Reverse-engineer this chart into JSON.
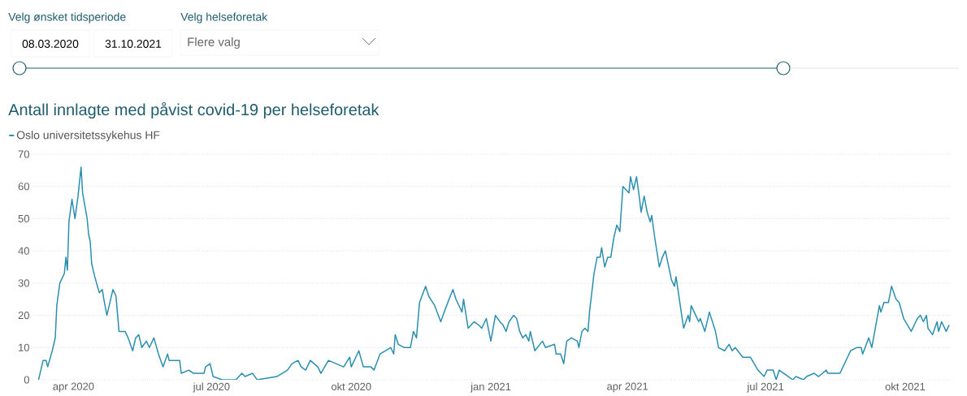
{
  "chart_data": {
    "type": "line",
    "title": "Antall innlagte med påvist covid-19 per helseforetak",
    "annotations": [
      "Velg ønsket tidsperiode",
      "08.03.2020",
      "31.10.2021",
      "Velg helseforetak",
      "Flere valg"
    ],
    "x": [
      "2020-03-09",
      "2020-03-12",
      "2020-03-14",
      "2020-03-15",
      "2020-03-18",
      "2020-03-20",
      "2020-03-21",
      "2020-03-23",
      "2020-03-26",
      "2020-03-27",
      "2020-03-28",
      "2020-03-29",
      "2020-03-31",
      "2020-04-02",
      "2020-04-04",
      "2020-04-06",
      "2020-04-07",
      "2020-04-10",
      "2020-04-11",
      "2020-04-12",
      "2020-04-13",
      "2020-04-15",
      "2020-04-18",
      "2020-04-20",
      "2020-04-21",
      "2020-04-23",
      "2020-04-27",
      "2020-04-29",
      "2020-05-01",
      "2020-05-05",
      "2020-05-07",
      "2020-05-10",
      "2020-05-12",
      "2020-05-14",
      "2020-05-16",
      "2020-05-19",
      "2020-05-21",
      "2020-05-24",
      "2020-05-27",
      "2020-05-30",
      "2020-06-02",
      "2020-06-03",
      "2020-06-10",
      "2020-06-11",
      "2020-06-16",
      "2020-06-19",
      "2020-06-26",
      "2020-06-27",
      "2020-06-30",
      "2020-07-02",
      "2020-07-08",
      "2020-07-17",
      "2020-07-21",
      "2020-07-23",
      "2020-07-28",
      "2020-07-31",
      "2020-08-13",
      "2020-08-20",
      "2020-08-23",
      "2020-08-27",
      "2020-08-29",
      "2020-09-01",
      "2020-09-04",
      "2020-09-09",
      "2020-09-11",
      "2020-09-16",
      "2020-09-21",
      "2020-09-26",
      "2020-09-30",
      "2020-10-01",
      "2020-10-06",
      "2020-10-09",
      "2020-10-14",
      "2020-10-16",
      "2020-10-20",
      "2020-10-27",
      "2020-10-29",
      "2020-10-30",
      "2020-11-01",
      "2020-11-05",
      "2020-11-09",
      "2020-11-11",
      "2020-11-13",
      "2020-11-15",
      "2020-11-19",
      "2020-11-21",
      "2020-11-25",
      "2020-11-29",
      "2020-12-02",
      "2020-12-07",
      "2020-12-09",
      "2020-12-13",
      "2020-12-14",
      "2020-12-17",
      "2020-12-21",
      "2020-12-24",
      "2020-12-26",
      "2020-12-29",
      "2021-01-01",
      "2021-01-04",
      "2021-01-07",
      "2021-01-09",
      "2021-01-11",
      "2021-01-13",
      "2021-01-16",
      "2021-01-18",
      "2021-01-20",
      "2021-01-22",
      "2021-01-24",
      "2021-01-26",
      "2021-01-27",
      "2021-01-30",
      "2021-02-04",
      "2021-02-06",
      "2021-02-12",
      "2021-02-13",
      "2021-02-16",
      "2021-02-18",
      "2021-02-20",
      "2021-02-23",
      "2021-02-27",
      "2021-02-28",
      "2021-03-02",
      "2021-03-04",
      "2021-03-06",
      "2021-03-07",
      "2021-03-10",
      "2021-03-12",
      "2021-03-14",
      "2021-03-15",
      "2021-03-17",
      "2021-03-19",
      "2021-03-21",
      "2021-03-23",
      "2021-03-25",
      "2021-03-27",
      "2021-03-29",
      "2021-04-02",
      "2021-04-03",
      "2021-04-05",
      "2021-04-07",
      "2021-04-09",
      "2021-04-10",
      "2021-04-12",
      "2021-04-14",
      "2021-04-16",
      "2021-04-17",
      "2021-04-19",
      "2021-04-22",
      "2021-04-24",
      "2021-04-26",
      "2021-04-30",
      "2021-05-02",
      "2021-05-03",
      "2021-05-08",
      "2021-05-11",
      "2021-05-12",
      "2021-05-13",
      "2021-05-16",
      "2021-05-18",
      "2021-05-19",
      "2021-05-22",
      "2021-05-25",
      "2021-05-29",
      "2021-05-31",
      "2021-06-04",
      "2021-06-07",
      "2021-06-09",
      "2021-06-11",
      "2021-06-16",
      "2021-06-21",
      "2021-06-26",
      "2021-06-30",
      "2021-07-02",
      "2021-07-06",
      "2021-07-08",
      "2021-07-10",
      "2021-07-16",
      "2021-07-19",
      "2021-07-21",
      "2021-07-26",
      "2021-07-28",
      "2021-08-02",
      "2021-08-05",
      "2021-08-10",
      "2021-08-11",
      "2021-08-19",
      "2021-08-24",
      "2021-08-26",
      "2021-08-30",
      "2021-09-02",
      "2021-09-03",
      "2021-09-07",
      "2021-09-09",
      "2021-09-14",
      "2021-09-15",
      "2021-09-17",
      "2021-09-20",
      "2021-09-22",
      "2021-09-25",
      "2021-09-27",
      "2021-09-30",
      "2021-10-05",
      "2021-10-09",
      "2021-10-11",
      "2021-10-13",
      "2021-10-15",
      "2021-10-16",
      "2021-10-19",
      "2021-10-22",
      "2021-10-23",
      "2021-10-25",
      "2021-10-28",
      "2021-10-30"
    ],
    "series": [
      {
        "name": "Oslo universitetssykehus HF",
        "color": "#2a8fae",
        "values": [
          0,
          6,
          6,
          4,
          9,
          13,
          23,
          30,
          33,
          38,
          34,
          49,
          56,
          50,
          57,
          66,
          58,
          50,
          45,
          43,
          36,
          32,
          27,
          28,
          25,
          20,
          28,
          26,
          15,
          15,
          13,
          9,
          13,
          14,
          10,
          12,
          10,
          13,
          8,
          4,
          8,
          6,
          6,
          2,
          3,
          2,
          2,
          4,
          5,
          1,
          0,
          0,
          2,
          1,
          2,
          0,
          1,
          3,
          5,
          6,
          4,
          3,
          6,
          4,
          2,
          6,
          5,
          4,
          7,
          4,
          9,
          4,
          4,
          3,
          8,
          10,
          8,
          14,
          11,
          10,
          10,
          15,
          13,
          24,
          29,
          26,
          23,
          18,
          22,
          28,
          25,
          21,
          25,
          16,
          18,
          17,
          16,
          19,
          12,
          20,
          18,
          17,
          15,
          18,
          20,
          19,
          15,
          13,
          14,
          12,
          15,
          9,
          12,
          10,
          11,
          8,
          8,
          5,
          12,
          13,
          12,
          10,
          15,
          16,
          15,
          21,
          33,
          38,
          38,
          41,
          35,
          38,
          38,
          44,
          48,
          46,
          60,
          58,
          63,
          59,
          63,
          56,
          52,
          57,
          52,
          49,
          51,
          44,
          35,
          38,
          40,
          31,
          29,
          32,
          16,
          20,
          18,
          23,
          20,
          18,
          19,
          15,
          21,
          15,
          10,
          9,
          11,
          9,
          10,
          7,
          7,
          3,
          1,
          3,
          3,
          0,
          3,
          1,
          0,
          1,
          0,
          1,
          2,
          1,
          3,
          2,
          2,
          7,
          9,
          10,
          10,
          8,
          13,
          10,
          23,
          21,
          24,
          24,
          29,
          25,
          24,
          19,
          15,
          19,
          20,
          18,
          20,
          16,
          14,
          18,
          15,
          18,
          15,
          17
        ]
      }
    ],
    "xlim": [
      "2020-03-05",
      "2021-10-31"
    ],
    "xticks": [
      {
        "value": "2020-04-01",
        "label": "apr 2020"
      },
      {
        "value": "2020-07-01",
        "label": "jul 2020"
      },
      {
        "value": "2020-10-01",
        "label": "okt 2020"
      },
      {
        "value": "2021-01-01",
        "label": "jan 2021"
      },
      {
        "value": "2021-04-01",
        "label": "apr 2021"
      },
      {
        "value": "2021-07-01",
        "label": "jul 2021"
      },
      {
        "value": "2021-10-01",
        "label": "okt 2021"
      }
    ],
    "ylim": [
      0,
      70
    ],
    "yticks": [
      0,
      10,
      20,
      30,
      40,
      50,
      60,
      70
    ],
    "grid": "y",
    "legend": "top left",
    "marker": "none",
    "line_style": "solid"
  }
}
